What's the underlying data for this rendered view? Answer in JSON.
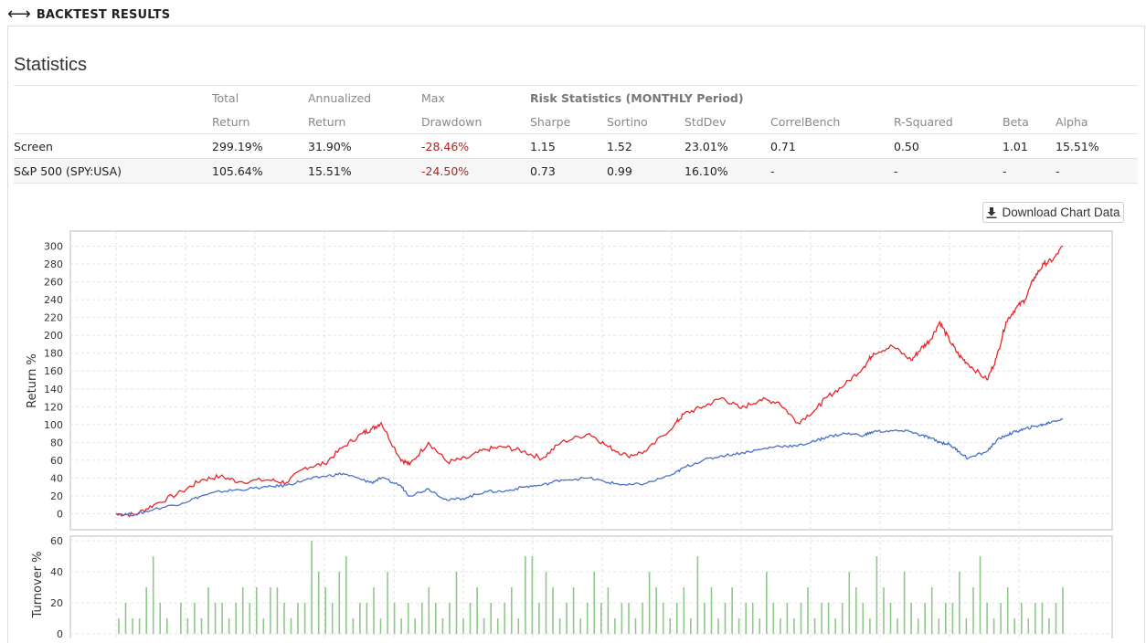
{
  "header": {
    "icon": "double-arrow-icon",
    "title": "BACKTEST RESULTS"
  },
  "statistics": {
    "title": "Statistics",
    "group_header": "Risk Statistics (MONTHLY Period)",
    "columns": [
      {
        "top": "Total",
        "bottom": "Return"
      },
      {
        "top": "Annualized",
        "bottom": "Return"
      },
      {
        "top": "Max",
        "bottom": "Drawdown"
      },
      {
        "top": "",
        "bottom": "Sharpe"
      },
      {
        "top": "",
        "bottom": "Sortino"
      },
      {
        "top": "",
        "bottom": "StdDev"
      },
      {
        "top": "",
        "bottom": "CorrelBench"
      },
      {
        "top": "",
        "bottom": "R-Squared"
      },
      {
        "top": "",
        "bottom": "Beta"
      },
      {
        "top": "",
        "bottom": "Alpha"
      }
    ],
    "rows": [
      {
        "name": "Screen",
        "values": [
          "299.19%",
          "31.90%",
          "-28.46%",
          "1.15",
          "1.52",
          "23.01%",
          "0.71",
          "0.50",
          "1.01",
          "15.51%"
        ]
      },
      {
        "name": "S&P 500 (SPY:USA)",
        "values": [
          "105.64%",
          "15.51%",
          "-24.50%",
          "0.73",
          "0.99",
          "16.10%",
          "-",
          "-",
          "-",
          "-"
        ]
      }
    ]
  },
  "download_button": {
    "label": "Download Chart Data",
    "icon": "download-icon"
  },
  "colors": {
    "screen": "#e8262b",
    "benchmark": "#4a72c6",
    "turnover": "#8fc98a",
    "negative": "#b22222"
  },
  "chart_data": [
    {
      "type": "line",
      "ylabel": "Return %",
      "xlabel": "",
      "ylim": [
        -10,
        310
      ],
      "yticks": [
        0,
        20,
        40,
        60,
        80,
        100,
        120,
        140,
        160,
        180,
        200,
        220,
        240,
        260,
        280,
        300
      ],
      "grid": true,
      "x_progress": [
        0,
        0.02,
        0.04,
        0.07,
        0.09,
        0.11,
        0.13,
        0.16,
        0.18,
        0.2,
        0.22,
        0.24,
        0.26,
        0.27,
        0.28,
        0.3,
        0.31,
        0.33,
        0.35,
        0.37,
        0.39,
        0.41,
        0.43,
        0.45,
        0.47,
        0.5,
        0.52,
        0.54,
        0.56,
        0.59,
        0.6,
        0.62,
        0.64,
        0.66,
        0.68,
        0.7,
        0.72,
        0.74,
        0.75,
        0.77,
        0.79,
        0.8,
        0.82,
        0.84,
        0.85,
        0.86,
        0.87,
        0.88,
        0.89,
        0.9,
        0.92,
        0.93,
        0.94,
        0.95,
        0.96,
        0.97,
        0.98,
        0.99,
        1.0
      ],
      "series": [
        {
          "color_key": "screen",
          "values": [
            0,
            -1,
            10,
            25,
            38,
            42,
            36,
            38,
            35,
            52,
            56,
            75,
            90,
            95,
            102,
            62,
            55,
            80,
            58,
            62,
            72,
            75,
            70,
            62,
            80,
            90,
            75,
            65,
            70,
            100,
            112,
            120,
            130,
            118,
            128,
            125,
            102,
            118,
            130,
            145,
            165,
            180,
            188,
            172,
            185,
            195,
            215,
            195,
            178,
            168,
            150,
            175,
            215,
            230,
            240,
            265,
            280,
            285,
            300
          ]
        },
        {
          "color_key": "benchmark",
          "values": [
            0,
            -1,
            5,
            12,
            20,
            25,
            27,
            30,
            32,
            38,
            42,
            45,
            38,
            35,
            40,
            32,
            20,
            28,
            15,
            18,
            25,
            25,
            30,
            32,
            38,
            40,
            35,
            32,
            34,
            45,
            52,
            60,
            65,
            68,
            72,
            76,
            76,
            82,
            86,
            90,
            88,
            92,
            93,
            92,
            88,
            85,
            80,
            78,
            70,
            62,
            70,
            82,
            88,
            92,
            95,
            98,
            100,
            104,
            106
          ]
        }
      ]
    },
    {
      "type": "bar",
      "ylabel": "Turnover %",
      "ylim": [
        0,
        60
      ],
      "yticks": [
        0,
        20,
        40,
        60
      ],
      "grid": true,
      "values": [
        10,
        20,
        10,
        10,
        30,
        50,
        20,
        10,
        0,
        20,
        10,
        20,
        10,
        30,
        20,
        20,
        10,
        20,
        30,
        20,
        30,
        10,
        30,
        30,
        20,
        10,
        20,
        20,
        60,
        40,
        30,
        20,
        40,
        50,
        10,
        20,
        20,
        30,
        10,
        40,
        20,
        10,
        20,
        10,
        20,
        30,
        20,
        10,
        20,
        40,
        10,
        20,
        30,
        10,
        20,
        10,
        20,
        30,
        10,
        50,
        50,
        20,
        40,
        30,
        10,
        20,
        30,
        10,
        20,
        40,
        20,
        30,
        10,
        20,
        20,
        10,
        20,
        40,
        30,
        20,
        10,
        20,
        30,
        10,
        50,
        20,
        30,
        10,
        20,
        30,
        10,
        20,
        20,
        10,
        40,
        20,
        10,
        20,
        10,
        20,
        30,
        10,
        20,
        20,
        10,
        20,
        40,
        30,
        20,
        10,
        50,
        30,
        20,
        10,
        40,
        20,
        10,
        20,
        30,
        10,
        20,
        20,
        40,
        10,
        30,
        50,
        20,
        10,
        20,
        30,
        10,
        20,
        10,
        20,
        20,
        10,
        20,
        30
      ]
    }
  ]
}
